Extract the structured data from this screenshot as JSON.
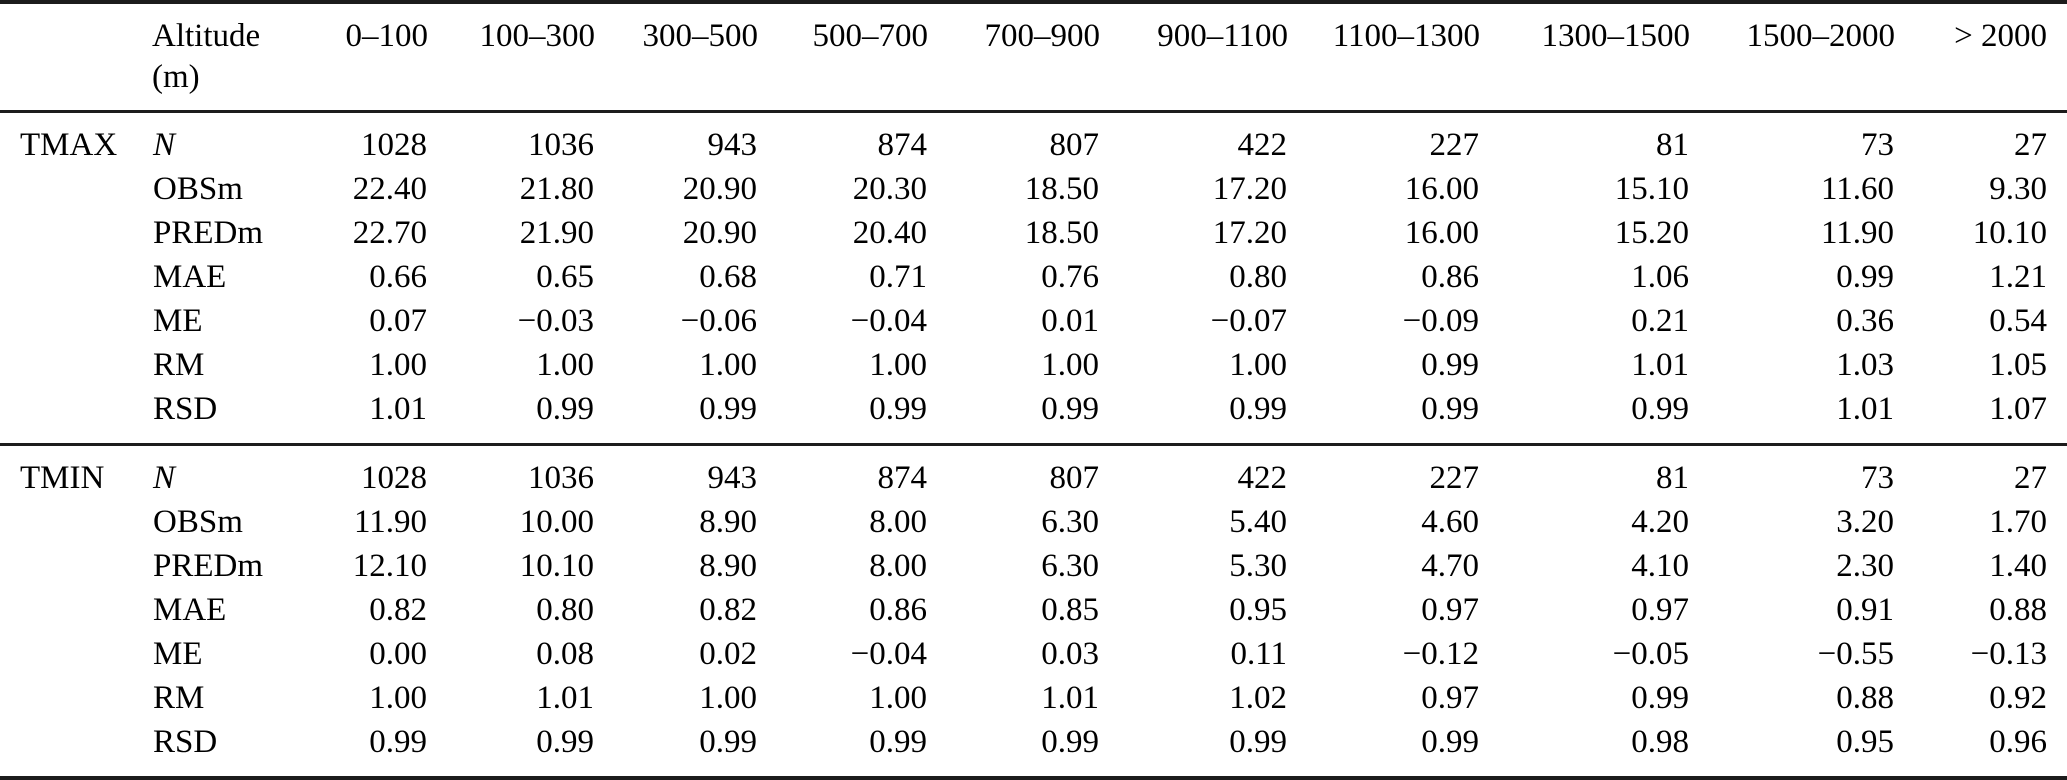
{
  "header": {
    "corner": "",
    "row_header_line1": "Altitude",
    "row_header_line2": "(m)",
    "columns": [
      "0–100",
      "100–300",
      "300–500",
      "500–700",
      "700–900",
      "900–1100",
      "1100–1300",
      "1300–1500",
      "1500–2000",
      "> 2000"
    ]
  },
  "sections": [
    {
      "name": "TMAX",
      "rows": [
        {
          "label": "N",
          "italic": true,
          "values": [
            "1028",
            "1036",
            "943",
            "874",
            "807",
            "422",
            "227",
            "81",
            "73",
            "27"
          ]
        },
        {
          "label": "OBSm",
          "italic": false,
          "values": [
            "22.40",
            "21.80",
            "20.90",
            "20.30",
            "18.50",
            "17.20",
            "16.00",
            "15.10",
            "11.60",
            "9.30"
          ]
        },
        {
          "label": "PREDm",
          "italic": false,
          "values": [
            "22.70",
            "21.90",
            "20.90",
            "20.40",
            "18.50",
            "17.20",
            "16.00",
            "15.20",
            "11.90",
            "10.10"
          ]
        },
        {
          "label": "MAE",
          "italic": false,
          "values": [
            "0.66",
            "0.65",
            "0.68",
            "0.71",
            "0.76",
            "0.80",
            "0.86",
            "1.06",
            "0.99",
            "1.21"
          ]
        },
        {
          "label": "ME",
          "italic": false,
          "values": [
            "0.07",
            "−0.03",
            "−0.06",
            "−0.04",
            "0.01",
            "−0.07",
            "−0.09",
            "0.21",
            "0.36",
            "0.54"
          ]
        },
        {
          "label": "RM",
          "italic": false,
          "values": [
            "1.00",
            "1.00",
            "1.00",
            "1.00",
            "1.00",
            "1.00",
            "0.99",
            "1.01",
            "1.03",
            "1.05"
          ]
        },
        {
          "label": "RSD",
          "italic": false,
          "values": [
            "1.01",
            "0.99",
            "0.99",
            "0.99",
            "0.99",
            "0.99",
            "0.99",
            "0.99",
            "1.01",
            "1.07"
          ]
        }
      ]
    },
    {
      "name": "TMIN",
      "rows": [
        {
          "label": "N",
          "italic": true,
          "values": [
            "1028",
            "1036",
            "943",
            "874",
            "807",
            "422",
            "227",
            "81",
            "73",
            "27"
          ]
        },
        {
          "label": "OBSm",
          "italic": false,
          "values": [
            "11.90",
            "10.00",
            "8.90",
            "8.00",
            "6.30",
            "5.40",
            "4.60",
            "4.20",
            "3.20",
            "1.70"
          ]
        },
        {
          "label": "PREDm",
          "italic": false,
          "values": [
            "12.10",
            "10.10",
            "8.90",
            "8.00",
            "6.30",
            "5.30",
            "4.70",
            "4.10",
            "2.30",
            "1.40"
          ]
        },
        {
          "label": "MAE",
          "italic": false,
          "values": [
            "0.82",
            "0.80",
            "0.82",
            "0.86",
            "0.85",
            "0.95",
            "0.97",
            "0.97",
            "0.91",
            "0.88"
          ]
        },
        {
          "label": "ME",
          "italic": false,
          "values": [
            "0.00",
            "0.08",
            "0.02",
            "−0.04",
            "0.03",
            "0.11",
            "−0.12",
            "−0.05",
            "−0.55",
            "−0.13"
          ]
        },
        {
          "label": "RM",
          "italic": false,
          "values": [
            "1.00",
            "1.01",
            "1.00",
            "1.00",
            "1.01",
            "1.02",
            "0.97",
            "0.99",
            "0.88",
            "0.92"
          ]
        },
        {
          "label": "RSD",
          "italic": false,
          "values": [
            "0.99",
            "0.99",
            "0.99",
            "0.99",
            "0.99",
            "0.99",
            "0.99",
            "0.98",
            "0.95",
            "0.96"
          ]
        }
      ]
    }
  ],
  "colors": {
    "text": "#000000",
    "rule": "#1c1c1c",
    "background": "#ffffff"
  }
}
